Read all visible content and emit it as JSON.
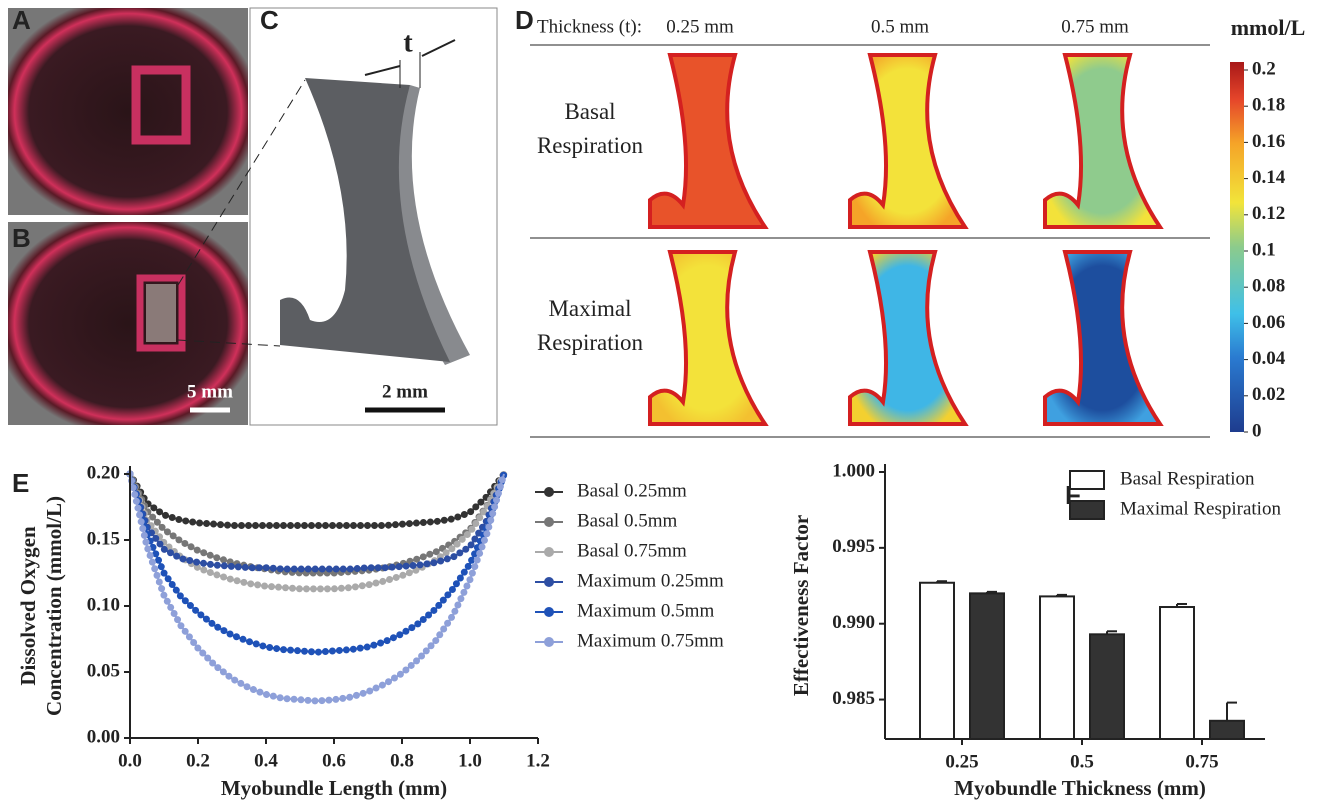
{
  "panel_labels": [
    "A",
    "B",
    "C",
    "D",
    "E",
    "F"
  ],
  "photos": {
    "scale_bar": "5 mm"
  },
  "diagram": {
    "thickness_symbol": "t",
    "scale_bar": "2 mm"
  },
  "heatmap": {
    "thickness_label": "Thickness (t):",
    "columns": [
      "0.25 mm",
      "0.5 mm",
      "0.75 mm"
    ],
    "rows": [
      "Basal Respiration",
      "Maximal Respiration"
    ],
    "colorbar": {
      "title": "mmol/L",
      "lim": [
        0,
        0.2
      ],
      "ticks": [
        0.2,
        0.18,
        0.16,
        0.14,
        0.12,
        0.1,
        0.08,
        0.06,
        0.04,
        0.02,
        0
      ]
    }
  },
  "chart_data": [
    {
      "type": "line",
      "xlabel": "Myobundle Length (mm)",
      "ylabel": [
        "Dissolved Oxygen",
        "Concentration (mmol/L)"
      ],
      "legend": "right",
      "x": [
        0,
        0.05,
        0.1,
        0.15,
        0.2,
        0.25,
        0.3,
        0.35,
        0.4,
        0.45,
        0.5,
        0.55,
        0.6,
        0.65,
        0.7,
        0.75,
        0.8,
        0.85,
        0.9,
        0.95,
        1.0,
        1.05,
        1.1
      ],
      "xlim": [
        0,
        1.2
      ],
      "ylim": [
        0,
        0.2
      ],
      "xticks": [
        {
          "value": 0,
          "label": "0.0"
        },
        0.2,
        0.4,
        0.6,
        0.8,
        {
          "value": 1,
          "label": "1.0"
        },
        1.2
      ],
      "yticks": [
        {
          "value": 0,
          "label": "0.00"
        },
        0.05,
        {
          "value": 0.1,
          "label": "0.10"
        },
        0.15,
        {
          "value": 0.2,
          "label": "0.20"
        }
      ],
      "series": [
        {
          "name": "Basal 0.25mm",
          "color": "#333333",
          "values": [
            0.2,
            0.178,
            0.169,
            0.165,
            0.163,
            0.162,
            0.161,
            0.161,
            0.161,
            0.161,
            0.161,
            0.161,
            0.161,
            0.161,
            0.161,
            0.161,
            0.162,
            0.163,
            0.164,
            0.166,
            0.171,
            0.183,
            0.2
          ]
        },
        {
          "name": "Basal 0.5mm",
          "color": "#777777",
          "values": [
            0.2,
            0.172,
            0.158,
            0.149,
            0.142,
            0.137,
            0.133,
            0.13,
            0.128,
            0.126,
            0.125,
            0.125,
            0.125,
            0.126,
            0.127,
            0.129,
            0.132,
            0.136,
            0.141,
            0.148,
            0.158,
            0.176,
            0.2
          ]
        },
        {
          "name": "Basal 0.75mm",
          "color": "#aaaaaa",
          "values": [
            0.2,
            0.165,
            0.148,
            0.137,
            0.129,
            0.124,
            0.12,
            0.117,
            0.115,
            0.114,
            0.113,
            0.113,
            0.113,
            0.114,
            0.116,
            0.119,
            0.123,
            0.128,
            0.135,
            0.144,
            0.156,
            0.175,
            0.2
          ]
        },
        {
          "name": "Maximum 0.25mm",
          "color": "#2d4ea3",
          "values": [
            0.2,
            0.16,
            0.143,
            0.136,
            0.133,
            0.131,
            0.13,
            0.129,
            0.129,
            0.128,
            0.128,
            0.128,
            0.128,
            0.128,
            0.129,
            0.129,
            0.13,
            0.131,
            0.133,
            0.137,
            0.145,
            0.165,
            0.2
          ]
        },
        {
          "name": "Maximum 0.5mm",
          "color": "#1f52b8",
          "values": [
            0.2,
            0.155,
            0.125,
            0.107,
            0.095,
            0.085,
            0.078,
            0.073,
            0.069,
            0.067,
            0.066,
            0.065,
            0.066,
            0.067,
            0.069,
            0.073,
            0.079,
            0.087,
            0.098,
            0.113,
            0.132,
            0.16,
            0.2
          ]
        },
        {
          "name": "Maximum 0.75mm",
          "color": "#8ea0d9",
          "values": [
            0.2,
            0.145,
            0.108,
            0.085,
            0.068,
            0.055,
            0.045,
            0.038,
            0.033,
            0.03,
            0.029,
            0.028,
            0.029,
            0.031,
            0.035,
            0.041,
            0.049,
            0.06,
            0.074,
            0.093,
            0.12,
            0.155,
            0.2
          ]
        }
      ]
    },
    {
      "type": "bar",
      "xlabel": "Myobundle Thickness (mm)",
      "ylabel": "Effectiveness Factor",
      "legend": "top-right",
      "categories": [
        "0.25",
        "0.5",
        "0.75"
      ],
      "ylim": [
        0.9824,
        1.0
      ],
      "yticks": [
        0.985,
        {
          "value": 0.99,
          "label": "0.990"
        },
        0.995,
        {
          "value": 1,
          "label": "1.000"
        }
      ],
      "series": [
        {
          "name": "Basal Respiration",
          "color": "#ffffff",
          "values": [
            0.9927,
            0.9918,
            0.9911
          ],
          "errors": [
            0.0001,
            0.0001,
            0.0002
          ]
        },
        {
          "name": "Maximal Respiration",
          "color": "#333333",
          "values": [
            0.992,
            0.9893,
            0.9836
          ],
          "errors": [
            0.0001,
            0.0002,
            0.0012
          ]
        }
      ]
    }
  ]
}
